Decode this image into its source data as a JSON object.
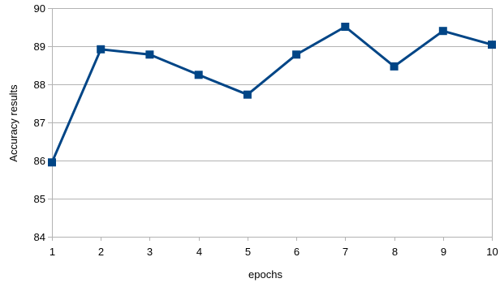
{
  "chart_data": {
    "type": "line",
    "title": "",
    "xlabel": "epochs",
    "ylabel": "Accuracy results",
    "x": [
      1,
      2,
      3,
      4,
      5,
      6,
      7,
      8,
      9,
      10
    ],
    "series": [
      {
        "values": [
          85.95,
          88.92,
          88.78,
          88.25,
          87.73,
          88.78,
          89.51,
          88.47,
          89.4,
          89.04
        ],
        "color": "#004586",
        "marker": "square"
      }
    ],
    "xlim": [
      1,
      10
    ],
    "ylim": [
      84,
      90
    ],
    "xticks": [
      "1",
      "2",
      "3",
      "4",
      "5",
      "6",
      "7",
      "8",
      "9",
      "10"
    ],
    "yticks": [
      "84",
      "85",
      "86",
      "87",
      "88",
      "89",
      "90"
    ],
    "grid": "horizontal",
    "grid_color": "#b3b3b3",
    "legend": "none"
  }
}
